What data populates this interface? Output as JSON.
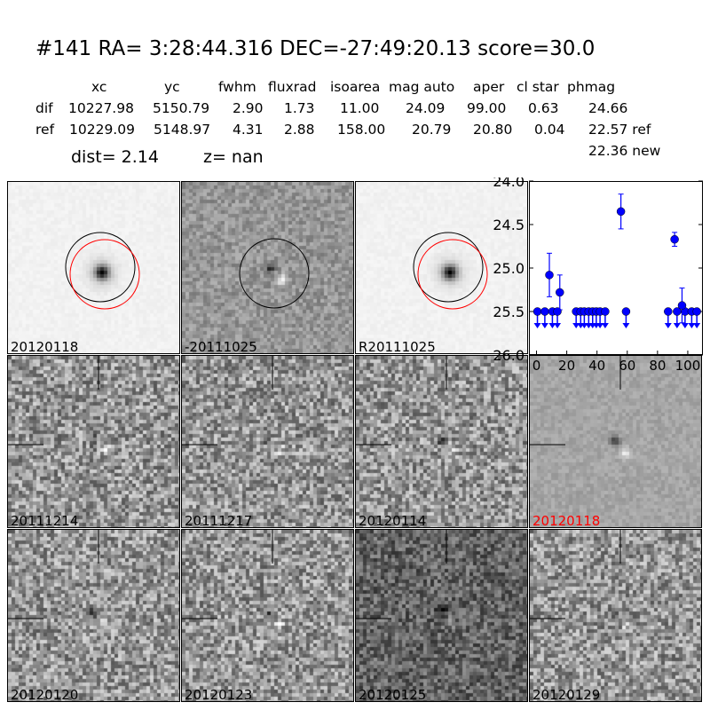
{
  "header": {
    "title": "#141   RA= 3:28:44.316 DEC=-27:49:20.13       score=30.0",
    "columns": [
      "xc",
      "yc",
      "fwhm",
      "fluxrad",
      "isoarea",
      "mag auto",
      "aper",
      "cl star",
      "phmag"
    ],
    "rows": [
      {
        "label": "dif",
        "values": [
          "10227.98",
          "5150.79",
          "2.90",
          "1.73",
          "11.00",
          "24.09",
          "99.00",
          "0.63",
          "24.66"
        ]
      },
      {
        "label": "ref",
        "values": [
          "10229.09",
          "5148.97",
          "4.31",
          "2.88",
          "158.00",
          "20.79",
          "20.80",
          "0.04",
          "22.57 ref"
        ]
      }
    ],
    "extra": "22.36 new",
    "dist": "dist=  2.14",
    "z": "z=   nan"
  },
  "tiles": [
    {
      "label": "20120118",
      "kind": "star",
      "circles": true
    },
    {
      "label": "-20111025",
      "kind": "diff",
      "circles": true
    },
    {
      "label": "R20111025",
      "kind": "star",
      "circles": true
    },
    {
      "label": "20111214",
      "kind": "noise"
    },
    {
      "label": "20111217",
      "kind": "noise"
    },
    {
      "label": "20120114",
      "kind": "noise"
    },
    {
      "label": "20120118",
      "kind": "smooth",
      "color": "#ff0000"
    },
    {
      "label": "20120120",
      "kind": "noise"
    },
    {
      "label": "20120123",
      "kind": "noise"
    },
    {
      "label": "20120125",
      "kind": "dark"
    },
    {
      "label": "20120129",
      "kind": "noise"
    }
  ],
  "chart_data": {
    "type": "scatter",
    "xlim": [
      -5,
      110
    ],
    "ylim": [
      26.0,
      24.0
    ],
    "y_inverted": true,
    "xticks": [
      "0",
      "20",
      "40",
      "60",
      "80",
      "100"
    ],
    "yticks": [
      "24.0",
      "24.5",
      "25.0",
      "25.5",
      "26.0"
    ],
    "color": "#0000ff",
    "detections": [
      {
        "x": 8.5,
        "y": 25.08,
        "err": 0.25
      },
      {
        "x": 15.4,
        "y": 25.28,
        "err": 0.2
      },
      {
        "x": 55.8,
        "y": 24.35,
        "err": 0.2
      },
      {
        "x": 91.3,
        "y": 24.67,
        "err": 0.08
      },
      {
        "x": 96.2,
        "y": 25.43,
        "err": 0.2
      }
    ],
    "upper_limits": {
      "y": 25.5,
      "x": [
        0.6,
        5.5,
        10.5,
        13.8,
        26.2,
        29.2,
        31.6,
        34.5,
        37.1,
        39.5,
        42,
        45.4,
        59.2,
        87,
        92.9,
        98.2,
        102.6,
        106
      ]
    }
  }
}
